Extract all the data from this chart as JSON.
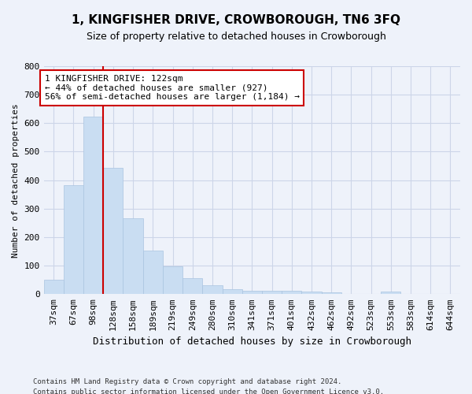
{
  "title": "1, KINGFISHER DRIVE, CROWBOROUGH, TN6 3FQ",
  "subtitle": "Size of property relative to detached houses in Crowborough",
  "xlabel": "Distribution of detached houses by size in Crowborough",
  "ylabel": "Number of detached properties",
  "footnote1": "Contains HM Land Registry data © Crown copyright and database right 2024.",
  "footnote2": "Contains public sector information licensed under the Open Government Licence v3.0.",
  "bar_labels": [
    "37sqm",
    "67sqm",
    "98sqm",
    "128sqm",
    "158sqm",
    "189sqm",
    "219sqm",
    "249sqm",
    "280sqm",
    "310sqm",
    "341sqm",
    "371sqm",
    "401sqm",
    "432sqm",
    "462sqm",
    "492sqm",
    "523sqm",
    "553sqm",
    "583sqm",
    "614sqm",
    "644sqm"
  ],
  "bar_values": [
    50,
    383,
    624,
    444,
    265,
    153,
    97,
    55,
    30,
    18,
    12,
    12,
    13,
    10,
    5,
    1,
    0,
    8,
    0,
    0,
    0
  ],
  "bar_color": "#c9ddf2",
  "bar_edge_color": "#aac4e0",
  "grid_color": "#ccd5e8",
  "bg_color": "#eef2fa",
  "vline_color": "#cc0000",
  "annotation_text": "1 KINGFISHER DRIVE: 122sqm\n← 44% of detached houses are smaller (927)\n56% of semi-detached houses are larger (1,184) →",
  "annotation_box_color": "white",
  "annotation_box_edge": "#cc0000",
  "ylim": [
    0,
    800
  ],
  "yticks": [
    0,
    100,
    200,
    300,
    400,
    500,
    600,
    700,
    800
  ],
  "title_fontsize": 11,
  "subtitle_fontsize": 9,
  "ylabel_fontsize": 8,
  "xlabel_fontsize": 9,
  "tick_fontsize": 8,
  "annot_fontsize": 8,
  "footnote_fontsize": 6.5,
  "vline_x_index": 2.5
}
